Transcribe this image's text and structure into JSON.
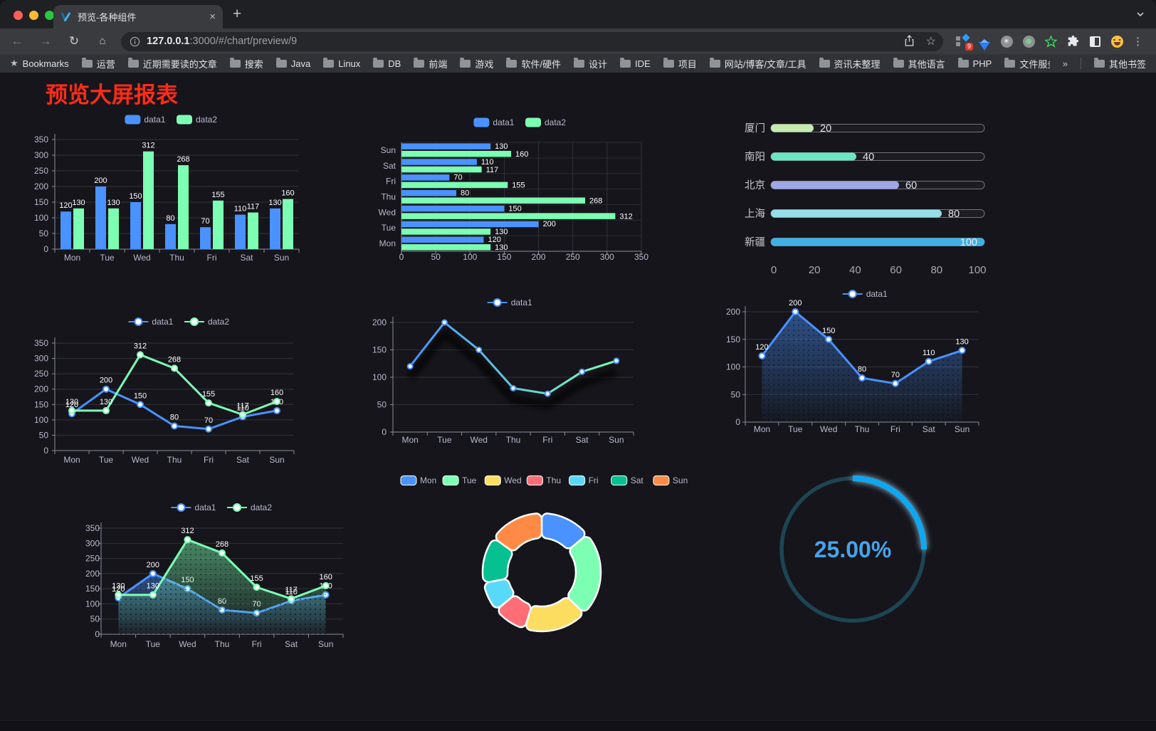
{
  "browser": {
    "traffic_lights": {
      "close": "#ff5f57",
      "minimize": "#febc2e",
      "zoom": "#28c840"
    },
    "tab": {
      "title": "预览-各种组件",
      "close_glyph": "×",
      "new_tab_glyph": "+"
    },
    "toolbar": {
      "url_host": "127.0.0.1",
      "url_rest": ":3000/#/chart/preview/9",
      "extension_badge": "9"
    },
    "bookmarks": {
      "label": "Bookmarks",
      "items": [
        "运营",
        "近期需要读的文章",
        "搜索",
        "Java",
        "Linux",
        "DB",
        "前端",
        "游戏",
        "软件/硬件",
        "设计",
        "IDE",
        "项目",
        "网站/博客/文章/工具",
        "资讯未整理",
        "其他语言",
        "PHP",
        "文件服务器"
      ],
      "overflow_glyph": "»",
      "other_bookmarks": "其他书签"
    }
  },
  "page": {
    "title": "预览大屏报表",
    "title_color": "#fe2c18"
  },
  "style": {
    "axis_text": "#b9b8ce",
    "grid": "#32333d",
    "band_line": "#2b2c34",
    "axis_line": "#8b8e98",
    "value_label": "#ffffff",
    "background": "#15151b"
  },
  "chart_data": [
    {
      "id": "bar-grouped",
      "type": "bar",
      "legend": [
        "data1",
        "data2"
      ],
      "categories": [
        "Mon",
        "Tue",
        "Wed",
        "Thu",
        "Fri",
        "Sat",
        "Sun"
      ],
      "series": [
        {
          "name": "data1",
          "color": "#4992ff",
          "values": [
            120,
            200,
            150,
            80,
            70,
            110,
            130
          ]
        },
        {
          "name": "data2",
          "color": "#7cffb2",
          "values": [
            130,
            130,
            312,
            268,
            155,
            117,
            160
          ]
        }
      ],
      "ylim": [
        0,
        350
      ],
      "yticks": [
        0,
        50,
        100,
        150,
        200,
        250,
        300,
        350
      ],
      "value_labels": true,
      "grid": true
    },
    {
      "id": "bar-horizontal",
      "type": "bar",
      "orientation": "horizontal",
      "legend": [
        "data1",
        "data2"
      ],
      "categories": [
        "Mon",
        "Tue",
        "Wed",
        "Thu",
        "Fri",
        "Sat",
        "Sun"
      ],
      "series": [
        {
          "name": "data1",
          "color": "#4992ff",
          "values": [
            120,
            200,
            150,
            80,
            70,
            110,
            130
          ]
        },
        {
          "name": "data2",
          "color": "#7cffb2",
          "values": [
            130,
            130,
            312,
            268,
            155,
            117,
            160
          ]
        }
      ],
      "xlim": [
        0,
        350
      ],
      "xticks": [
        0,
        50,
        100,
        150,
        200,
        250,
        300,
        350
      ],
      "value_labels": true,
      "grid": true
    },
    {
      "id": "progress-bars",
      "type": "bar",
      "subtype": "progress",
      "categories": [
        "厦门",
        "南阳",
        "北京",
        "上海",
        "新疆"
      ],
      "values": [
        20,
        40,
        60,
        80,
        100
      ],
      "colors": [
        "#c4ebad",
        "#6be6c1",
        "#a0a7e6",
        "#96dee8",
        "#3fb1e3"
      ],
      "xlim": [
        0,
        100
      ],
      "xticks": [
        0,
        20,
        40,
        60,
        80,
        100
      ],
      "value_labels": true
    },
    {
      "id": "line-two-series",
      "type": "line",
      "legend": [
        "data1",
        "data2"
      ],
      "categories": [
        "Mon",
        "Tue",
        "Wed",
        "Thu",
        "Fri",
        "Sat",
        "Sun"
      ],
      "series": [
        {
          "name": "data1",
          "color": "#4992ff",
          "values": [
            120,
            200,
            150,
            80,
            70,
            110,
            130
          ]
        },
        {
          "name": "data2",
          "color": "#7cffb2",
          "values": [
            130,
            130,
            312,
            268,
            155,
            117,
            160
          ]
        }
      ],
      "ylim": [
        0,
        350
      ],
      "yticks": [
        0,
        50,
        100,
        150,
        200,
        250,
        300,
        350
      ],
      "value_labels": true,
      "grid": true
    },
    {
      "id": "line-gradient",
      "type": "line",
      "legend": [
        "data1"
      ],
      "categories": [
        "Mon",
        "Tue",
        "Wed",
        "Thu",
        "Fri",
        "Sat",
        "Sun"
      ],
      "series": [
        {
          "name": "data1",
          "gradient": [
            "#4992ff",
            "#7cffb2"
          ],
          "color": "#4992ff",
          "values": [
            120,
            200,
            150,
            80,
            70,
            110,
            130
          ]
        }
      ],
      "ylim": [
        0,
        200
      ],
      "yticks": [
        0,
        50,
        100,
        150,
        200
      ],
      "value_labels": false,
      "shadow": true,
      "grid": true
    },
    {
      "id": "area-single",
      "type": "area",
      "legend": [
        "data1"
      ],
      "categories": [
        "Mon",
        "Tue",
        "Wed",
        "Thu",
        "Fri",
        "Sat",
        "Sun"
      ],
      "series": [
        {
          "name": "data1",
          "color": "#4992ff",
          "area": "blue",
          "values": [
            120,
            200,
            150,
            80,
            70,
            110,
            130
          ]
        }
      ],
      "ylim": [
        0,
        200
      ],
      "yticks": [
        0,
        50,
        100,
        150,
        200
      ],
      "value_labels": true,
      "grid": true
    },
    {
      "id": "area-two-series",
      "type": "area",
      "legend": [
        "data1",
        "data2"
      ],
      "categories": [
        "Mon",
        "Tue",
        "Wed",
        "Thu",
        "Fri",
        "Sat",
        "Sun"
      ],
      "series": [
        {
          "name": "data1",
          "color": "#4992ff",
          "area": "blue",
          "values": [
            120,
            200,
            150,
            80,
            70,
            110,
            130
          ]
        },
        {
          "name": "data2",
          "color": "#7cffb2",
          "area": "green",
          "values": [
            130,
            130,
            312,
            268,
            155,
            117,
            160
          ]
        }
      ],
      "ylim": [
        0,
        350
      ],
      "yticks": [
        0,
        50,
        100,
        150,
        200,
        250,
        300,
        350
      ],
      "value_labels": true,
      "grid": true
    },
    {
      "id": "donut",
      "type": "pie",
      "labels": [
        "Mon",
        "Tue",
        "Wed",
        "Thu",
        "Fri",
        "Sat",
        "Sun"
      ],
      "values": [
        120,
        200,
        150,
        80,
        70,
        110,
        130
      ],
      "colors": [
        "#4992ff",
        "#7cffb2",
        "#fddd60",
        "#ff6e76",
        "#58d9f9",
        "#05c091",
        "#ff8a45"
      ],
      "legend_position": "top"
    },
    {
      "id": "gauge",
      "type": "gauge",
      "value": 25,
      "max": 100,
      "label": "25.00%",
      "arc_color": "#0ba8f1",
      "track_color": "#1d4553",
      "text_color": "#47a3ea"
    }
  ]
}
